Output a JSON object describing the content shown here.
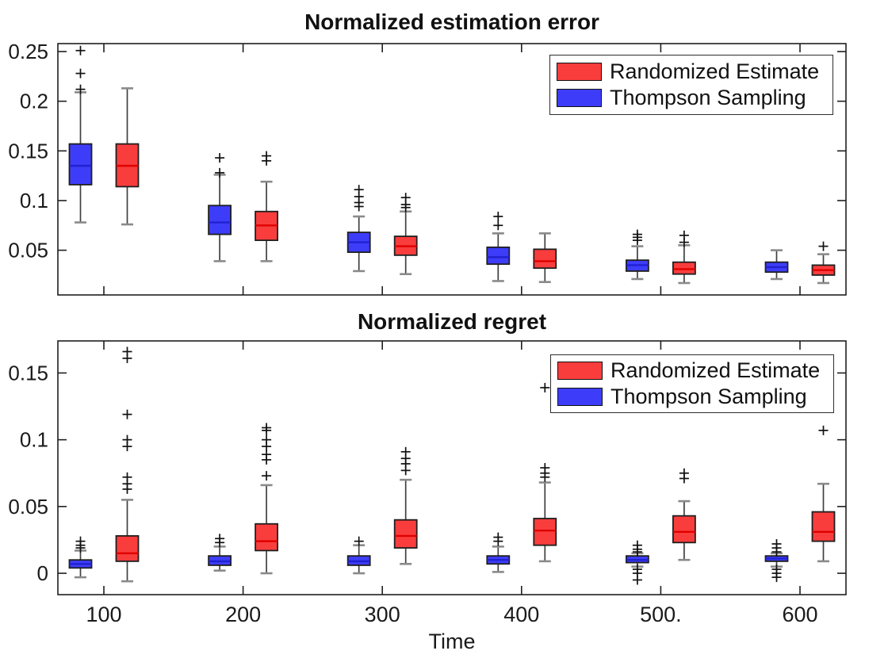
{
  "figure": {
    "background": "#ffffff"
  },
  "colors": {
    "randomized_estimate_fill": "#f93d3d",
    "thompson_sampling_fill": "#3d3df9",
    "red_median": "#e00000",
    "blue_median": "#2121cf",
    "box_edge": "#1f1f1f",
    "whisker_stem": "#404040",
    "whisker_cap": "#8a8a8a",
    "outlier": "#111111",
    "axis": "#1f1f1f",
    "tick_text": "#1a1a1a"
  },
  "chart_data": [
    {
      "id": "estimation-error",
      "type": "boxplot",
      "title": "Normalized estimation error",
      "xlabel": "",
      "categories": [
        100,
        200,
        300,
        400,
        500,
        600
      ],
      "x_tick_labels": [
        "100",
        "200",
        "300",
        "400",
        "500.",
        "600"
      ],
      "x_tick_labels_visible": false,
      "ylim": [
        0.005,
        0.258
      ],
      "yticks": [
        0.05,
        0.1,
        0.15,
        0.2,
        0.25
      ],
      "ytick_labels": [
        "0.05",
        "0.1",
        "0.15",
        "0.2",
        "0.25"
      ],
      "grid": false,
      "legend_position": "top-right",
      "legend": [
        {
          "label": "Randomized Estimate",
          "color": "#f93d3d"
        },
        {
          "label": "Thompson Sampling",
          "color": "#3d3df9"
        }
      ],
      "series": [
        {
          "name": "Thompson Sampling",
          "key": "thompson-sampling",
          "color": "#3d3df9",
          "median_color": "#2121cf",
          "offset": -1,
          "boxes": [
            {
              "whislo": 0.078,
              "q1": 0.116,
              "med": 0.135,
              "q3": 0.157,
              "whishi": 0.209,
              "outliers": [
                0.212,
                0.228,
                0.251
              ]
            },
            {
              "whislo": 0.039,
              "q1": 0.066,
              "med": 0.078,
              "q3": 0.095,
              "whishi": 0.126,
              "outliers": [
                0.128,
                0.143
              ]
            },
            {
              "whislo": 0.029,
              "q1": 0.048,
              "med": 0.058,
              "q3": 0.068,
              "whishi": 0.084,
              "outliers": [
                0.094,
                0.098,
                0.104,
                0.111
              ]
            },
            {
              "whislo": 0.019,
              "q1": 0.036,
              "med": 0.043,
              "q3": 0.053,
              "whishi": 0.067,
              "outliers": [
                0.075,
                0.084
              ]
            },
            {
              "whislo": 0.021,
              "q1": 0.029,
              "med": 0.035,
              "q3": 0.04,
              "whishi": 0.054,
              "outliers": [
                0.06,
                0.063,
                0.066
              ]
            },
            {
              "whislo": 0.021,
              "q1": 0.028,
              "med": 0.033,
              "q3": 0.038,
              "whishi": 0.05,
              "outliers": []
            }
          ]
        },
        {
          "name": "Randomized Estimate",
          "key": "randomized-estimate",
          "color": "#f93d3d",
          "median_color": "#e00000",
          "offset": 1,
          "boxes": [
            {
              "whislo": 0.076,
              "q1": 0.114,
              "med": 0.135,
              "q3": 0.157,
              "whishi": 0.213,
              "outliers": []
            },
            {
              "whislo": 0.039,
              "q1": 0.06,
              "med": 0.075,
              "q3": 0.089,
              "whishi": 0.119,
              "outliers": [
                0.14,
                0.145
              ]
            },
            {
              "whislo": 0.026,
              "q1": 0.045,
              "med": 0.054,
              "q3": 0.064,
              "whishi": 0.089,
              "outliers": [
                0.093,
                0.096,
                0.103
              ]
            },
            {
              "whislo": 0.018,
              "q1": 0.032,
              "med": 0.039,
              "q3": 0.051,
              "whishi": 0.067,
              "outliers": []
            },
            {
              "whislo": 0.017,
              "q1": 0.026,
              "med": 0.031,
              "q3": 0.038,
              "whishi": 0.055,
              "outliers": [
                0.058,
                0.065
              ]
            },
            {
              "whislo": 0.017,
              "q1": 0.025,
              "med": 0.03,
              "q3": 0.035,
              "whishi": 0.046,
              "outliers": [
                0.054
              ]
            }
          ]
        }
      ]
    },
    {
      "id": "regret",
      "type": "boxplot",
      "title": "Normalized regret",
      "xlabel": "Time",
      "categories": [
        100,
        200,
        300,
        400,
        500,
        600
      ],
      "x_tick_labels": [
        "100",
        "200",
        "300",
        "400",
        "500.",
        "600"
      ],
      "x_tick_labels_visible": true,
      "ylim": [
        -0.016,
        0.174
      ],
      "yticks": [
        0,
        0.05,
        0.1,
        0.15
      ],
      "ytick_labels": [
        "0",
        "0.05",
        "0.1",
        "0.15"
      ],
      "grid": false,
      "legend_position": "top-right",
      "legend": [
        {
          "label": "Randomized Estimate",
          "color": "#f93d3d"
        },
        {
          "label": "Thompson Sampling",
          "color": "#3d3df9"
        }
      ],
      "series": [
        {
          "name": "Thompson Sampling",
          "key": "thompson-sampling",
          "color": "#3d3df9",
          "median_color": "#2121cf",
          "offset": -1,
          "boxes": [
            {
              "whislo": -0.003,
              "q1": 0.004,
              "med": 0.007,
              "q3": 0.01,
              "whishi": 0.017,
              "outliers": [
                0.019,
                0.021,
                0.024
              ]
            },
            {
              "whislo": 0.002,
              "q1": 0.006,
              "med": 0.009,
              "q3": 0.013,
              "whishi": 0.02,
              "outliers": [
                0.023,
                0.026
              ]
            },
            {
              "whislo": 0.0,
              "q1": 0.006,
              "med": 0.009,
              "q3": 0.013,
              "whishi": 0.021,
              "outliers": [
                0.024
              ]
            },
            {
              "whislo": 0.001,
              "q1": 0.007,
              "med": 0.01,
              "q3": 0.013,
              "whishi": 0.02,
              "outliers": [
                0.024,
                0.027
              ]
            },
            {
              "whislo": 0.005,
              "q1": 0.008,
              "med": 0.01,
              "q3": 0.013,
              "whishi": 0.015,
              "outliers": [
                0.016,
                0.018,
                0.021,
                0.003,
                0.0,
                -0.005
              ]
            },
            {
              "whislo": 0.005,
              "q1": 0.009,
              "med": 0.011,
              "q3": 0.013,
              "whishi": 0.015,
              "outliers": [
                0.016,
                0.019,
                0.022,
                0.003,
                0.0,
                -0.003
              ]
            }
          ]
        },
        {
          "name": "Randomized Estimate",
          "key": "randomized-estimate",
          "color": "#f93d3d",
          "median_color": "#e00000",
          "offset": 1,
          "boxes": [
            {
              "whislo": -0.006,
              "q1": 0.009,
              "med": 0.015,
              "q3": 0.028,
              "whishi": 0.055,
              "outliers": [
                0.063,
                0.067,
                0.072,
                0.095,
                0.1,
                0.119,
                0.161,
                0.166
              ]
            },
            {
              "whislo": 0.0,
              "q1": 0.017,
              "med": 0.024,
              "q3": 0.037,
              "whishi": 0.066,
              "outliers": [
                0.073,
                0.085,
                0.089,
                0.095,
                0.1,
                0.107,
                0.109
              ]
            },
            {
              "whislo": 0.007,
              "q1": 0.019,
              "med": 0.028,
              "q3": 0.04,
              "whishi": 0.07,
              "outliers": [
                0.077,
                0.082,
                0.086,
                0.091
              ]
            },
            {
              "whislo": 0.009,
              "q1": 0.021,
              "med": 0.032,
              "q3": 0.041,
              "whishi": 0.068,
              "outliers": [
                0.072,
                0.075,
                0.079,
                0.139
              ]
            },
            {
              "whislo": 0.01,
              "q1": 0.023,
              "med": 0.031,
              "q3": 0.043,
              "whishi": 0.054,
              "outliers": [
                0.071,
                0.075
              ]
            },
            {
              "whislo": 0.009,
              "q1": 0.024,
              "med": 0.031,
              "q3": 0.046,
              "whishi": 0.067,
              "outliers": [
                0.107
              ]
            }
          ]
        }
      ]
    }
  ]
}
